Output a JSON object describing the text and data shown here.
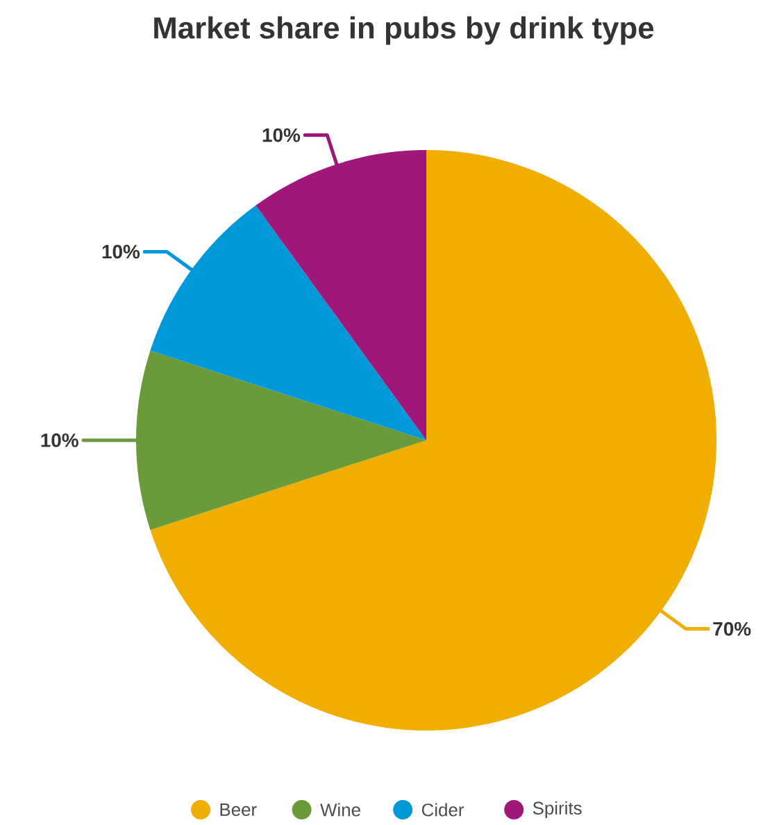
{
  "chart_data": {
    "type": "pie",
    "title": "Market share in pubs by drink type",
    "categories": [
      "Beer",
      "Wine",
      "Cider",
      "Spirits"
    ],
    "values": [
      70,
      10,
      10,
      10
    ],
    "colors": [
      "#f0ae00",
      "#6a9a3a",
      "#0098d8",
      "#a0177a"
    ],
    "value_labels": [
      "70%",
      "10%",
      "10%",
      "10%"
    ],
    "legend": "bottom"
  }
}
